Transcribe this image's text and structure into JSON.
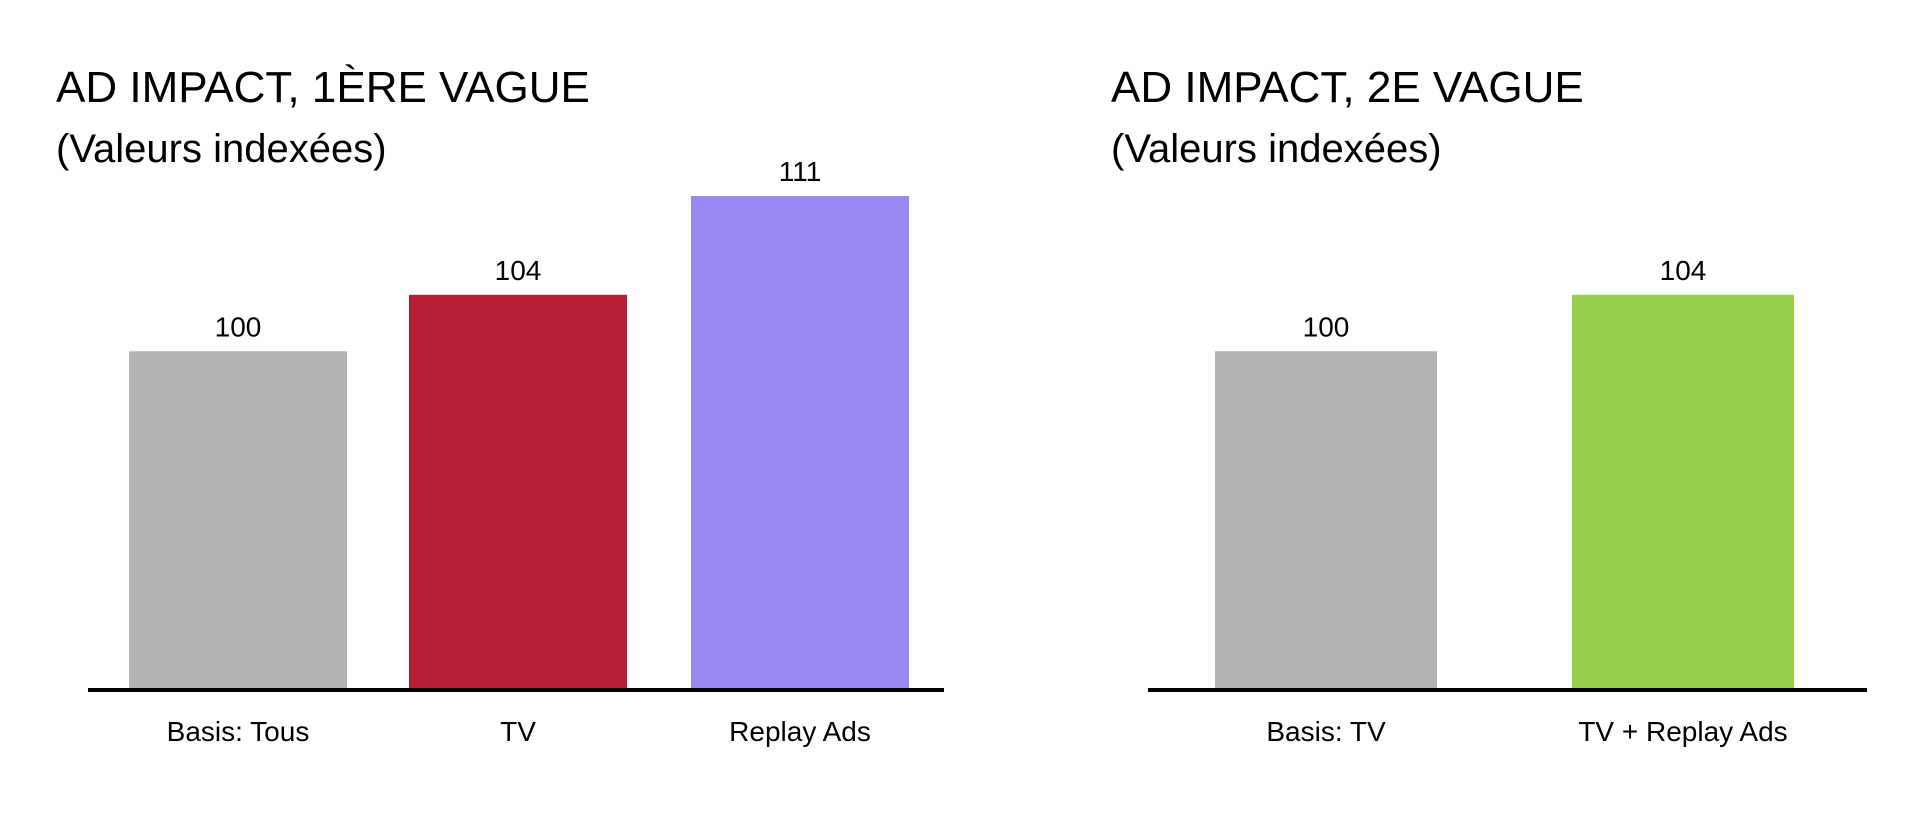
{
  "chart_data": [
    {
      "type": "bar",
      "title": "AD IMPACT, 1ÈRE VAGUE",
      "subtitle": "(Valeurs indexées)",
      "categories": [
        "Basis: Tous",
        "TV",
        "Replay Ads"
      ],
      "values": [
        100,
        104,
        111
      ],
      "colors": [
        "#b3b3b3",
        "#b51f33",
        "#9b87f0"
      ],
      "ylim": [
        76,
        111
      ],
      "grid": false,
      "legend": "none"
    },
    {
      "type": "bar",
      "title": "AD IMPACT, 2E VAGUE",
      "subtitle": "(Valeurs indexées)",
      "categories": [
        "Basis: TV",
        "TV + Replay Ads"
      ],
      "values": [
        100,
        104
      ],
      "colors": [
        "#b3b3b3",
        "#97d04b"
      ],
      "ylim": [
        76,
        111
      ],
      "grid": false,
      "legend": "none"
    }
  ]
}
